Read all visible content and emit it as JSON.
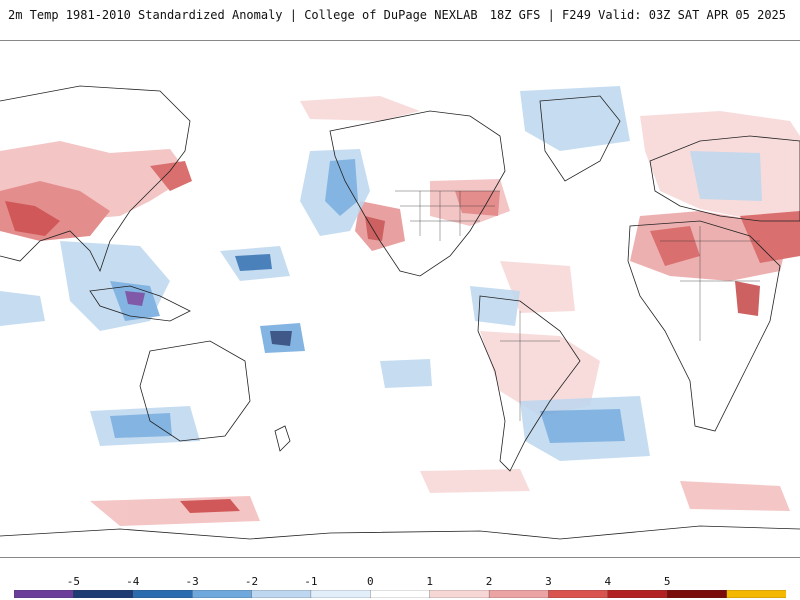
{
  "header": {
    "title": "2m Temp 1981-2010 Standardized Anomaly | College of DuPage NEXLAB",
    "run_info": "18Z GFS | F249 Valid: 03Z SAT APR 05 2025"
  },
  "map": {
    "projection": "equirectangular, Pacific-centered",
    "field": "2m temperature standardized anomaly"
  },
  "legend": {
    "labels": [
      "-5",
      "-4",
      "-3",
      "-2",
      "-1",
      "0",
      "1",
      "2",
      "3",
      "4",
      "5"
    ],
    "colors": [
      "#6a3d9a",
      "#1f3b73",
      "#2b6cb0",
      "#6fa8dc",
      "#bcd7ef",
      "#e2eef9",
      "#ffffff",
      "#f7d6d6",
      "#eba3a3",
      "#d9534f",
      "#b22222",
      "#7a0c0c",
      "#f5b800"
    ]
  }
}
